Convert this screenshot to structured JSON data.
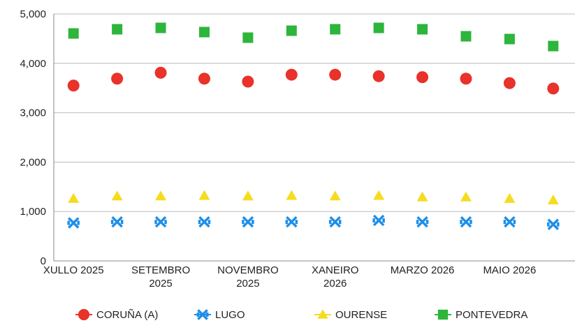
{
  "chart_data": {
    "type": "scatter",
    "categories": [
      "XULLO 2025",
      null,
      "SETEMBRO 2025",
      null,
      "NOVEMBRO 2025",
      null,
      "XANEIRO 2026",
      null,
      "MARZO 2026",
      null,
      "MAIO 2026",
      null
    ],
    "series": [
      {
        "name": "CORUÑA (A)",
        "color": "#e8322a",
        "marker": "circle",
        "values": [
          3550,
          3690,
          3810,
          3690,
          3630,
          3770,
          3770,
          3740,
          3720,
          3690,
          3600,
          3490
        ]
      },
      {
        "name": "LUGO",
        "color": "#1e8fe8",
        "marker": "x",
        "values": [
          770,
          790,
          790,
          790,
          790,
          790,
          790,
          820,
          790,
          790,
          790,
          740
        ]
      },
      {
        "name": "OURENSE",
        "color": "#f5dc1e",
        "marker": "triangle",
        "values": [
          1260,
          1310,
          1310,
          1320,
          1310,
          1320,
          1310,
          1320,
          1290,
          1290,
          1260,
          1230
        ]
      },
      {
        "name": "PONTEVEDRA",
        "color": "#2db53c",
        "marker": "square",
        "values": [
          4605,
          4690,
          4718,
          4633,
          4520,
          4661,
          4690,
          4718,
          4690,
          4548,
          4492,
          4350
        ]
      }
    ],
    "ylim": [
      0,
      5000
    ],
    "yticks": [
      0,
      {
        "value": 1000,
        "label": "1,000"
      },
      {
        "value": 2000,
        "label": "2,000"
      },
      {
        "value": 3000,
        "label": "3,000"
      },
      {
        "value": 4000,
        "label": "4,000"
      },
      {
        "value": 5000,
        "label": "5,000"
      }
    ],
    "grid": true,
    "legend": "bottom"
  }
}
